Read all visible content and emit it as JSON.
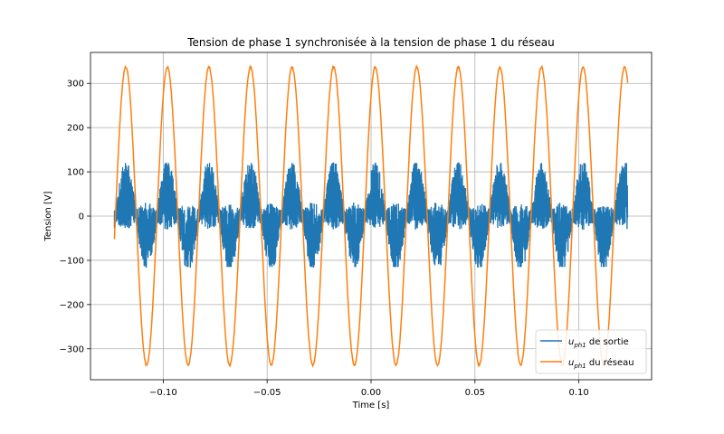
{
  "chart_data": {
    "type": "line",
    "title": "Tension de phase 1 synchronisée à la tension de phase 1 du réseau",
    "xlabel": "Time [s]",
    "ylabel": "Tension [V]",
    "xlim": [
      -0.135,
      0.135
    ],
    "ylim": [
      -370,
      370
    ],
    "grid": true,
    "legend_position": "bottom-right",
    "x_ticks": [
      -0.1,
      -0.05,
      0.0,
      0.05,
      0.1
    ],
    "x_tick_labels": [
      "−0.10",
      "−0.05",
      "0.00",
      "0.05",
      "0.10"
    ],
    "y_ticks": [
      -300,
      -200,
      -100,
      0,
      100,
      200,
      300
    ],
    "y_tick_labels": [
      "−300",
      "−200",
      "−100",
      "0",
      "100",
      "200",
      "300"
    ],
    "series": [
      {
        "name_main": "u",
        "name_sub": "ph1",
        "name_rest": " de sortie",
        "color": "#1f77b4",
        "x_range": [
          -0.1235,
          0.1235
        ],
        "envelope_peak": 120,
        "envelope_trough": -115,
        "frequency_hz": 50
      },
      {
        "name_main": "u",
        "name_sub": "ph1",
        "name_rest": " du réseau",
        "color": "#ff7f0e",
        "x_range": [
          -0.1235,
          0.1235
        ],
        "amplitude": 337,
        "frequency_hz": 50,
        "peaks_x": [
          -0.118,
          -0.098,
          -0.078,
          -0.058,
          -0.038,
          -0.018,
          0.002,
          0.022,
          0.042,
          0.062,
          0.082,
          0.102,
          0.122
        ],
        "troughs_x": [
          -0.108,
          -0.088,
          -0.068,
          -0.048,
          -0.028,
          -0.008,
          0.012,
          0.032,
          0.052,
          0.072,
          0.092,
          0.112
        ]
      }
    ]
  }
}
